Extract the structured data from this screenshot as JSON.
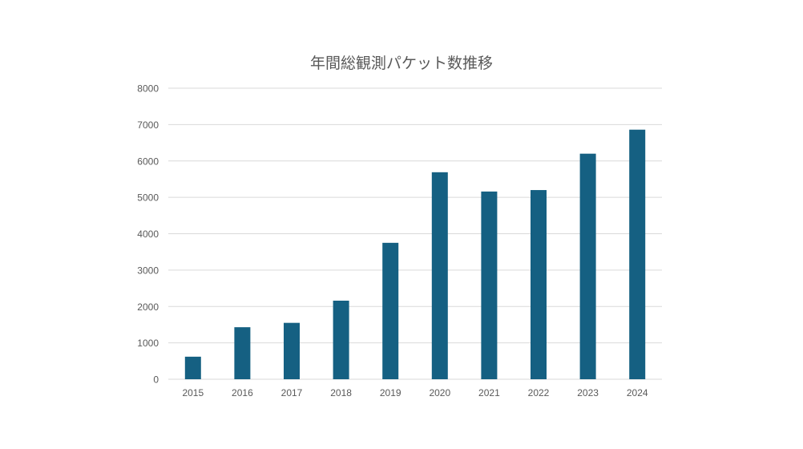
{
  "chart_data": {
    "type": "bar",
    "title": "年間総観測パケット数推移",
    "categories": [
      "2015",
      "2016",
      "2017",
      "2018",
      "2019",
      "2020",
      "2021",
      "2022",
      "2023",
      "2024"
    ],
    "values": [
      620,
      1430,
      1550,
      2160,
      3750,
      5690,
      5160,
      5200,
      6200,
      6860
    ],
    "ylim": [
      0,
      8000
    ],
    "yticks": [
      0,
      1000,
      2000,
      3000,
      4000,
      5000,
      6000,
      7000,
      8000
    ],
    "grid": true,
    "legend": "none",
    "bar_color": "#156082",
    "grid_color": "#d9d9d9",
    "text_color": "#595959"
  }
}
